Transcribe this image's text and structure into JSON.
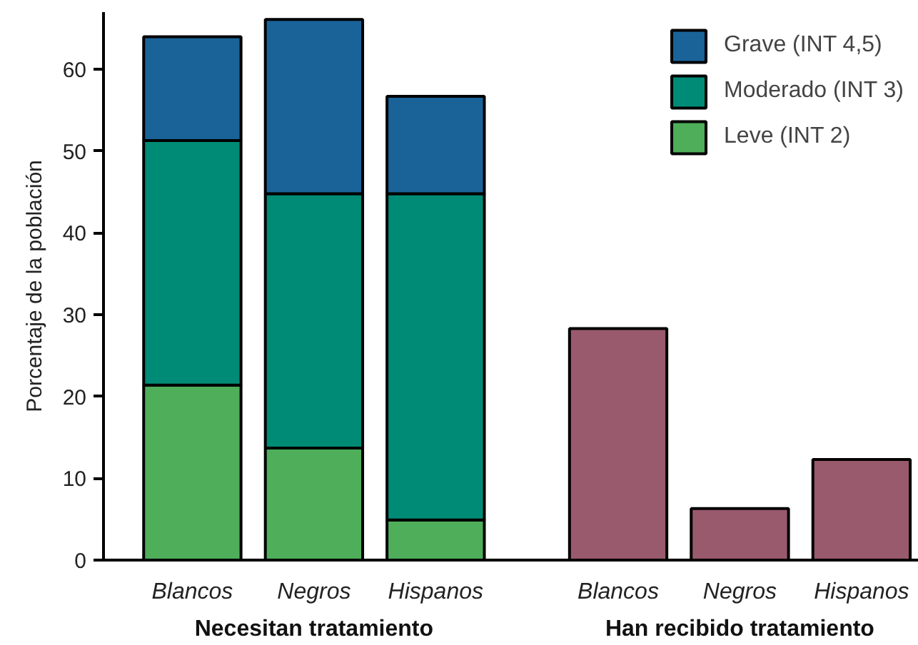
{
  "chart_data": {
    "type": "bar",
    "stacked": true,
    "ylabel": "Porcentaje de la población",
    "categories": [
      "Blancos",
      "Negros",
      "Hispanos",
      "Blancos",
      "Negros",
      "Hispanos"
    ],
    "series": [
      {
        "name": "Leve (INT 2)",
        "color": "#4fae5a",
        "values": [
          21.4,
          13.7,
          4.9,
          null,
          null,
          null
        ]
      },
      {
        "name": "Moderado (INT 3)",
        "color": "#008b76",
        "values": [
          29.9,
          31.1,
          39.9,
          null,
          null,
          null
        ]
      },
      {
        "name": "Grave (INT 4,5)",
        "color": "#1a6399",
        "values": [
          12.7,
          21.3,
          11.9,
          null,
          null,
          null
        ]
      },
      {
        "color": "#9a5a6e",
        "values": [
          null,
          null,
          null,
          28.3,
          6.3,
          12.3
        ]
      }
    ],
    "ylim": [
      0,
      67
    ],
    "yticks": [
      0,
      10,
      20,
      30,
      40,
      50,
      60
    ],
    "grid": false,
    "legend": "top right",
    "annotations": [
      "Necesitan tratamiento",
      "Han recibido tratamiento"
    ]
  }
}
